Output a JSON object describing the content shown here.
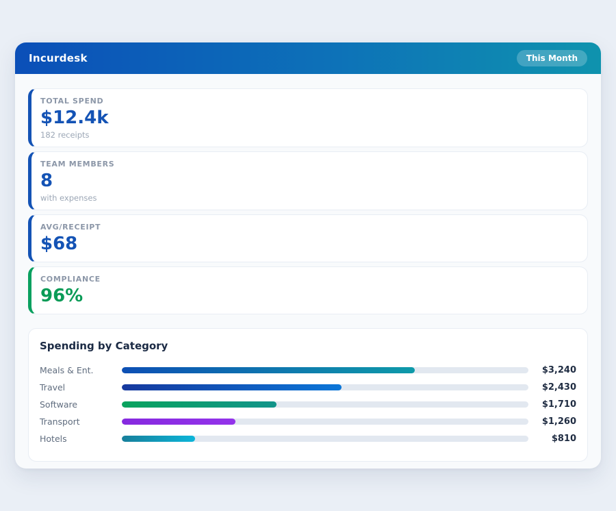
{
  "app": {
    "title": "Incurdesk",
    "period_badge": "This Month",
    "header_gradient": [
      "#0b4fb8",
      "#0f93ae"
    ]
  },
  "stats": [
    {
      "label": "TOTAL SPEND",
      "value": "$12.4k",
      "subtitle": "182 receipts",
      "accent": "#1453b5",
      "value_color": "#1453b5"
    },
    {
      "label": "TEAM MEMBERS",
      "value": "8",
      "subtitle": "with expenses",
      "accent": "#1453b5",
      "value_color": "#1453b5"
    },
    {
      "label": "AVG/RECEIPT",
      "value": "$68",
      "subtitle": "",
      "accent": "#1453b5",
      "value_color": "#1453b5"
    },
    {
      "label": "COMPLIANCE",
      "value": "96%",
      "subtitle": "",
      "accent": "#0aa05f",
      "value_color": "#0a9b57"
    }
  ],
  "chart_data": {
    "type": "bar",
    "orientation": "horizontal",
    "title": "Spending by Category",
    "categories": [
      "Meals & Ent.",
      "Travel",
      "Software",
      "Transport",
      "Hotels"
    ],
    "values": [
      3240,
      2430,
      1710,
      1260,
      810
    ],
    "value_labels": [
      "$3,240",
      "$2,430",
      "$1,710",
      "$1,260",
      "$810"
    ],
    "axis_max": 4500,
    "grid": false,
    "legend": false,
    "track_color": "#e2e8f0",
    "bar_gradients": [
      [
        "#0d4fb4",
        "#0e9aa9"
      ],
      [
        "#16399e",
        "#0b76d8"
      ],
      [
        "#09a35e",
        "#12948a"
      ],
      [
        "#8629df",
        "#9333ea"
      ],
      [
        "#177f9b",
        "#0cb5d9"
      ]
    ]
  }
}
